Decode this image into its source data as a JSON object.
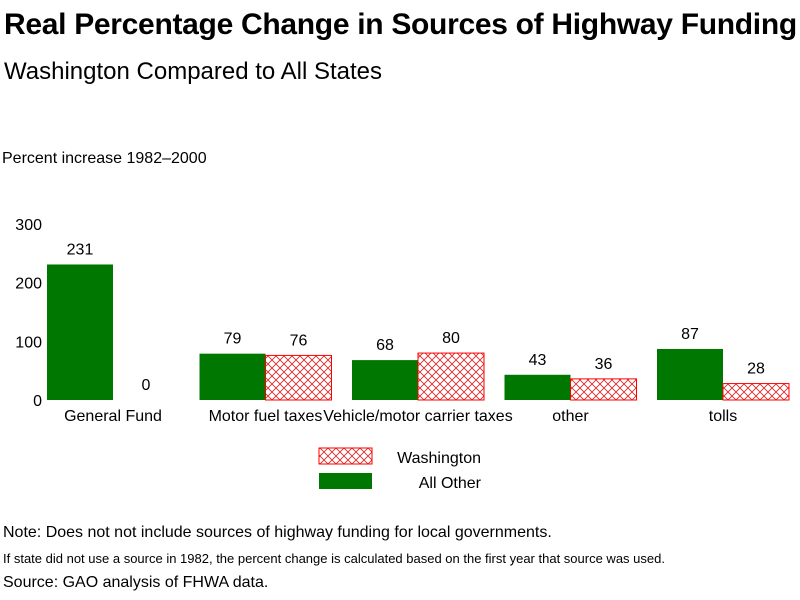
{
  "title": "Real Percentage Change in Sources of Highway Funding",
  "subtitle": "Washington Compared to All States",
  "notes": {
    "note1": "Note: Does not not include sources of highway funding for local governments.",
    "note2": "If state did not use a source in 1982, the percent change is calculated based on the first year that source was used.",
    "source": "Source: GAO analysis of FHWA data."
  },
  "chart_data": {
    "type": "bar",
    "ylabel": "Percent increase 1982–2000",
    "xlabel": "",
    "ylim": [
      0,
      300
    ],
    "yticks": [
      0,
      100,
      200,
      300
    ],
    "categories": [
      "General Fund",
      "Motor fuel taxes",
      "Vehicle/motor carrier taxes",
      "other",
      "tolls"
    ],
    "series": [
      {
        "name": "All Other",
        "values": [
          231,
          79,
          68,
          43,
          87
        ],
        "color": "#007700",
        "pattern": "solid"
      },
      {
        "name": "Washington",
        "values": [
          0,
          76,
          80,
          36,
          28
        ],
        "color": "#ff0000",
        "pattern": "crosshatch"
      }
    ],
    "legend_order": [
      "Washington",
      "All Other"
    ],
    "legend_position": "bottom-center",
    "grid": false
  }
}
